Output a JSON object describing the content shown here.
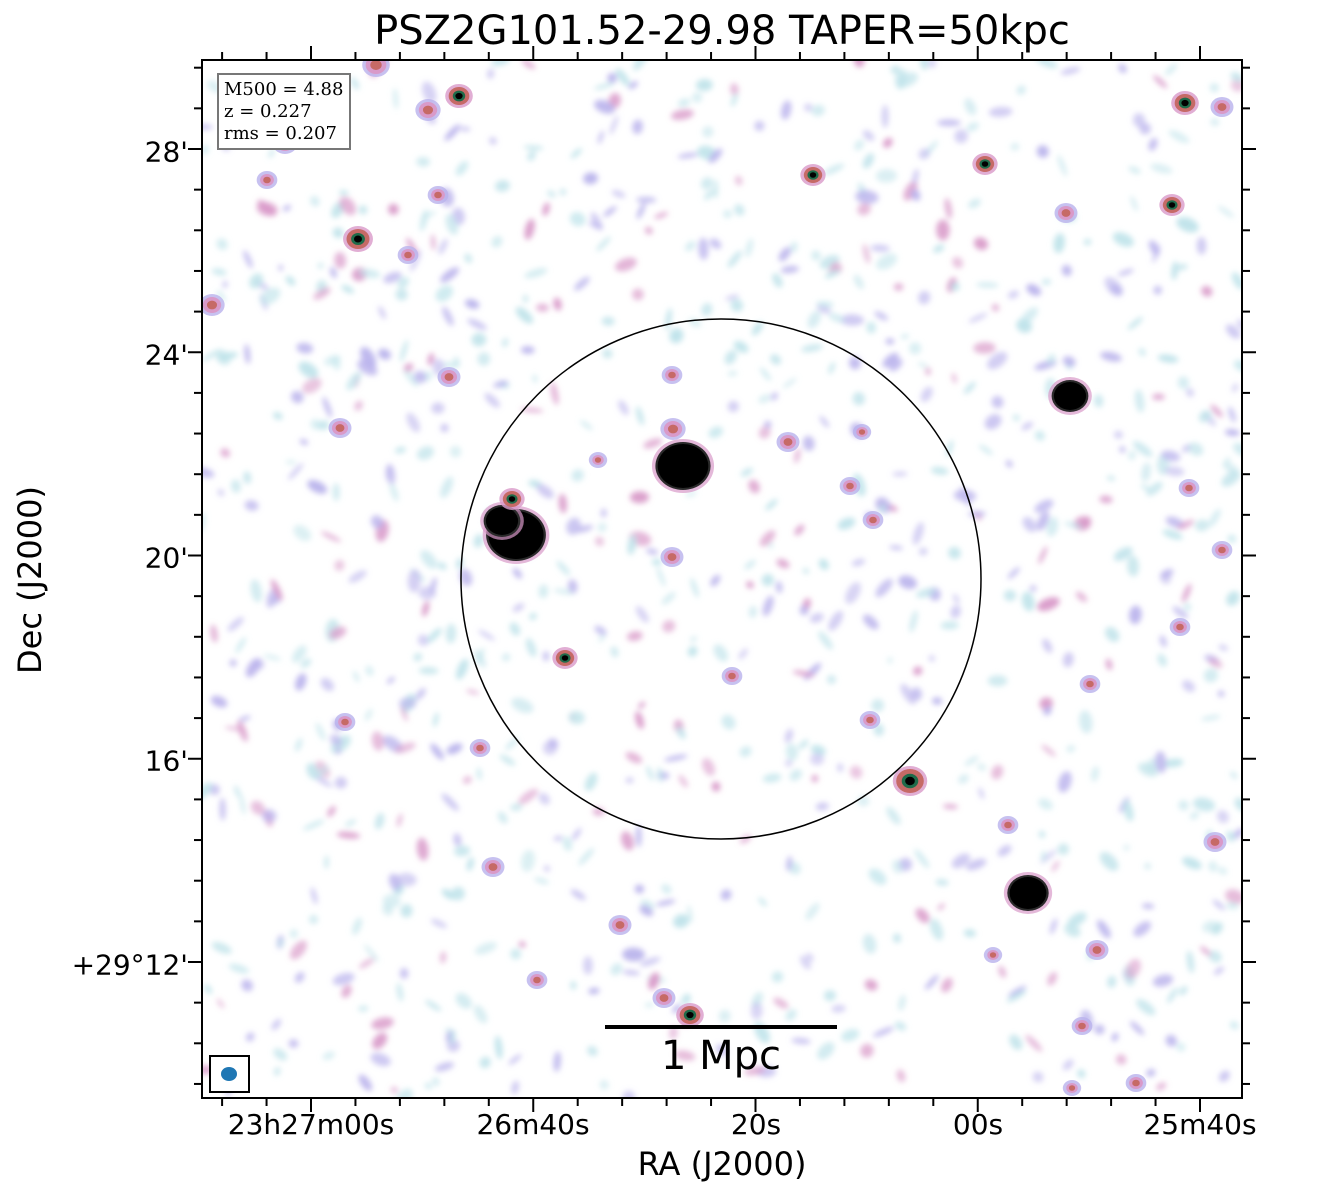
{
  "figure": {
    "title": "PSZ2G101.52-29.98 TAPER=50kpc",
    "xlabel": "RA (J2000)",
    "ylabel": "Dec (J2000)",
    "x_ticks": [
      "23h27m00s",
      "26m40s",
      "20s",
      "00s",
      "25m40s"
    ],
    "y_ticks": [
      "28'",
      "24'",
      "20'",
      "16'",
      "+29°12'"
    ],
    "info": {
      "m500": "M500 = 4.88",
      "z": "z = 0.227",
      "rms": "rms = 0.207"
    },
    "scalebar_label": "1 Mpc",
    "colors": {
      "background": "#ffffff",
      "faint_emission": "#bfe3ea",
      "low_emission": "#b9b2ec",
      "mid_emission": "#d99ac9",
      "high_emission": "#c66a66",
      "peak_emission": "#000000",
      "beam": "#1f77b4",
      "frame": "#000000"
    },
    "icons": {
      "beam": "beam-ellipse-icon",
      "aperture": "r500-circle"
    }
  }
}
